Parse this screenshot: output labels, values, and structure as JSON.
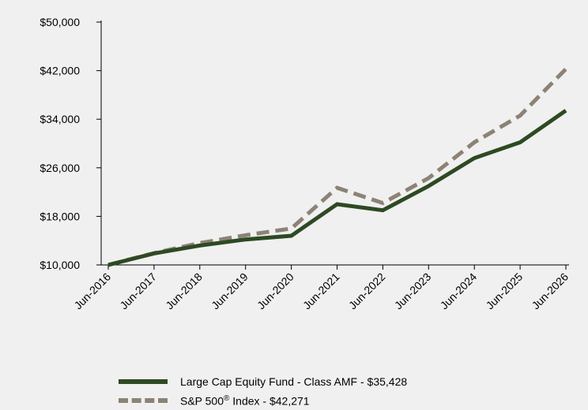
{
  "chart_data": {
    "type": "line",
    "title": "",
    "xlabel": "",
    "ylabel": "",
    "categories": [
      "Jun-2016",
      "Jun-2017",
      "Jun-2018",
      "Jun-2019",
      "Jun-2020",
      "Jun-2021",
      "Jun-2022",
      "Jun-2023",
      "Jun-2024",
      "Jun-2025",
      "Jun-2026"
    ],
    "y_ticks": [
      "$10,000",
      "$18,000",
      "$26,000",
      "$34,000",
      "$42,000",
      "$50,000"
    ],
    "ylim": [
      10000,
      50000
    ],
    "grid": false,
    "legend_position": "bottom",
    "series": [
      {
        "name": "Large Cap Equity Fund - Class AMF - $35,428",
        "color": "#2d4a22",
        "style": "solid",
        "values": [
          10000,
          11900,
          13200,
          14200,
          14800,
          20000,
          19000,
          23000,
          27600,
          30200,
          35428
        ]
      },
      {
        "name_prefix": "S&P 500",
        "name_superscript": "®",
        "name_suffix": " Index - $42,271",
        "color": "#8c8275",
        "style": "dashed",
        "values": [
          10000,
          11950,
          13600,
          14900,
          16000,
          22700,
          20200,
          24300,
          30200,
          34600,
          42271
        ]
      }
    ]
  }
}
